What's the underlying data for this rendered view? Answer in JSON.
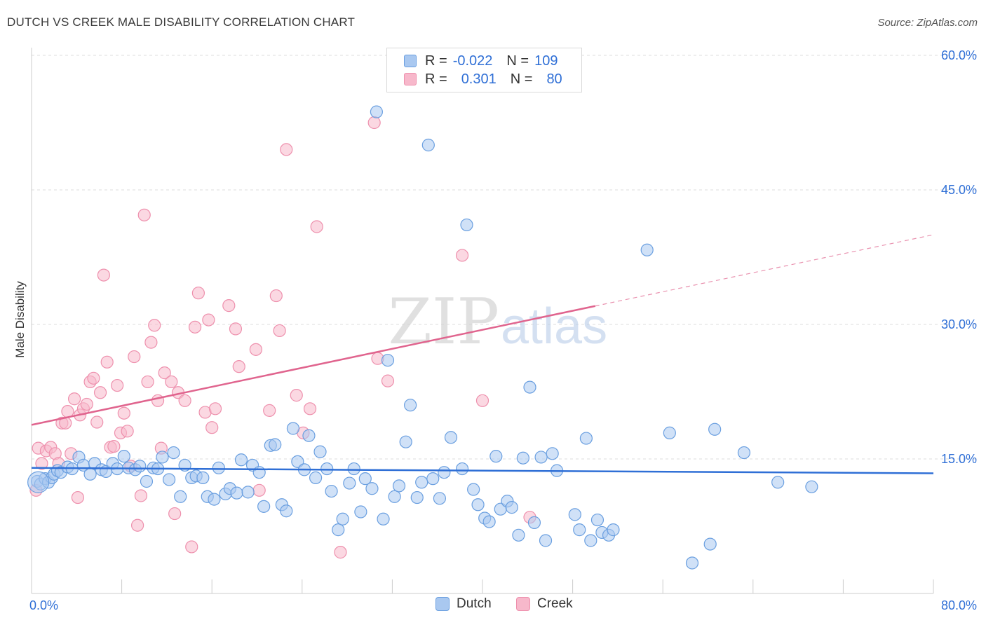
{
  "title": "DUTCH VS CREEK MALE DISABILITY CORRELATION CHART",
  "source": "Source: ZipAtlas.com",
  "watermark": {
    "zip": "ZIP",
    "atlas": "atlas"
  },
  "legend": {
    "rows": [
      {
        "r_label": "R =",
        "r_value": "-0.022",
        "n_label": "N =",
        "n_value": "109"
      },
      {
        "r_label": "R =",
        "r_value": "0.301",
        "n_label": "N =",
        "n_value": "80"
      }
    ]
  },
  "bottom_legend": {
    "dutch": "Dutch",
    "creek": "Creek"
  },
  "colors": {
    "dutch_fill": "#a9c8f0",
    "dutch_stroke": "#6a9fe0",
    "dutch_line": "#2f6fd6",
    "creek_fill": "#f7b8cb",
    "creek_stroke": "#ee90ad",
    "creek_line": "#e0648e",
    "axis_text": "#2f6fd6",
    "grid": "#dddddd"
  },
  "chart_data": {
    "type": "scatter",
    "title": "DUTCH VS CREEK MALE DISABILITY CORRELATION CHART",
    "xlabel": "",
    "ylabel": "Male Disability",
    "xlim": [
      0,
      80
    ],
    "ylim": [
      0,
      60
    ],
    "x_tick_labels": [
      "0.0%",
      "80.0%"
    ],
    "y_ticks": [
      15,
      30,
      45,
      60
    ],
    "y_tick_labels": [
      "15.0%",
      "30.0%",
      "45.0%",
      "60.0%"
    ],
    "grid": true,
    "series": [
      {
        "name": "Dutch",
        "r": -0.022,
        "n": 109,
        "trend": {
          "x0": 0,
          "y0": 14.0,
          "x1": 80,
          "y1": 13.4,
          "solid_until": 80
        },
        "points": [
          [
            0.5,
            12.5
          ],
          [
            0.8,
            12.2
          ],
          [
            1.2,
            12.8
          ],
          [
            1.5,
            12.4
          ],
          [
            1.8,
            12.9
          ],
          [
            2.0,
            13.3
          ],
          [
            2.3,
            13.7
          ],
          [
            2.6,
            13.5
          ],
          [
            3.2,
            14.1
          ],
          [
            3.6,
            13.9
          ],
          [
            4.2,
            15.2
          ],
          [
            4.6,
            14.3
          ],
          [
            5.2,
            13.3
          ],
          [
            5.6,
            14.5
          ],
          [
            6.2,
            13.8
          ],
          [
            6.6,
            13.6
          ],
          [
            7.2,
            14.5
          ],
          [
            7.6,
            13.9
          ],
          [
            8.2,
            15.3
          ],
          [
            8.6,
            14.0
          ],
          [
            9.2,
            13.8
          ],
          [
            9.6,
            14.2
          ],
          [
            10.2,
            12.5
          ],
          [
            10.8,
            14.0
          ],
          [
            11.2,
            13.9
          ],
          [
            11.6,
            15.2
          ],
          [
            12.2,
            12.7
          ],
          [
            12.6,
            15.7
          ],
          [
            13.2,
            10.8
          ],
          [
            13.6,
            14.3
          ],
          [
            14.2,
            12.9
          ],
          [
            14.6,
            13.1
          ],
          [
            15.2,
            12.9
          ],
          [
            15.6,
            10.8
          ],
          [
            16.2,
            10.5
          ],
          [
            16.6,
            14.0
          ],
          [
            17.2,
            11.1
          ],
          [
            17.6,
            11.7
          ],
          [
            18.2,
            11.2
          ],
          [
            18.6,
            14.9
          ],
          [
            19.2,
            11.3
          ],
          [
            19.6,
            14.3
          ],
          [
            20.2,
            13.5
          ],
          [
            20.6,
            9.7
          ],
          [
            21.2,
            16.5
          ],
          [
            21.6,
            16.6
          ],
          [
            22.2,
            9.9
          ],
          [
            22.6,
            9.2
          ],
          [
            23.2,
            18.4
          ],
          [
            23.6,
            14.7
          ],
          [
            24.2,
            13.8
          ],
          [
            24.6,
            17.6
          ],
          [
            25.2,
            12.9
          ],
          [
            25.6,
            15.8
          ],
          [
            26.2,
            13.9
          ],
          [
            26.6,
            11.4
          ],
          [
            27.2,
            7.1
          ],
          [
            27.6,
            8.3
          ],
          [
            28.2,
            12.3
          ],
          [
            28.6,
            13.9
          ],
          [
            29.2,
            9.1
          ],
          [
            29.6,
            12.8
          ],
          [
            30.2,
            11.7
          ],
          [
            30.6,
            53.7
          ],
          [
            31.2,
            8.3
          ],
          [
            31.6,
            26.0
          ],
          [
            32.2,
            10.8
          ],
          [
            32.6,
            12.0
          ],
          [
            33.2,
            16.9
          ],
          [
            33.6,
            21.0
          ],
          [
            34.2,
            10.7
          ],
          [
            34.6,
            12.4
          ],
          [
            35.2,
            50.0
          ],
          [
            35.6,
            12.8
          ],
          [
            36.2,
            10.6
          ],
          [
            36.6,
            13.5
          ],
          [
            37.2,
            17.4
          ],
          [
            38.2,
            13.9
          ],
          [
            38.6,
            41.1
          ],
          [
            39.2,
            11.6
          ],
          [
            39.6,
            9.9
          ],
          [
            40.2,
            8.4
          ],
          [
            40.6,
            8.0
          ],
          [
            41.2,
            15.3
          ],
          [
            41.6,
            9.4
          ],
          [
            42.2,
            10.3
          ],
          [
            42.6,
            9.6
          ],
          [
            43.2,
            6.5
          ],
          [
            43.6,
            15.1
          ],
          [
            44.2,
            23.0
          ],
          [
            44.6,
            7.9
          ],
          [
            45.2,
            15.2
          ],
          [
            45.6,
            5.9
          ],
          [
            46.2,
            15.6
          ],
          [
            46.6,
            13.7
          ],
          [
            48.2,
            8.8
          ],
          [
            48.6,
            7.1
          ],
          [
            49.2,
            17.3
          ],
          [
            49.6,
            5.9
          ],
          [
            50.2,
            8.2
          ],
          [
            50.6,
            6.8
          ],
          [
            51.2,
            6.5
          ],
          [
            51.6,
            7.1
          ],
          [
            54.6,
            38.3
          ],
          [
            56.6,
            17.9
          ],
          [
            58.6,
            3.4
          ],
          [
            60.2,
            5.5
          ],
          [
            60.6,
            18.3
          ],
          [
            63.2,
            15.7
          ],
          [
            66.2,
            12.4
          ],
          [
            69.2,
            11.9
          ]
        ]
      },
      {
        "name": "Creek",
        "r": 0.301,
        "n": 80,
        "trend": {
          "x0": 0,
          "y0": 18.8,
          "x1": 80,
          "y1": 40.0,
          "solid_until": 50
        },
        "points": [
          [
            0.4,
            11.5
          ],
          [
            0.6,
            16.2
          ],
          [
            0.9,
            14.5
          ],
          [
            1.3,
            15.9
          ],
          [
            1.7,
            16.3
          ],
          [
            2.1,
            15.6
          ],
          [
            2.4,
            14.5
          ],
          [
            2.7,
            19.0
          ],
          [
            3.0,
            19.0
          ],
          [
            3.2,
            20.3
          ],
          [
            3.5,
            15.6
          ],
          [
            3.8,
            21.7
          ],
          [
            4.1,
            10.7
          ],
          [
            4.3,
            19.9
          ],
          [
            4.6,
            20.6
          ],
          [
            4.9,
            21.1
          ],
          [
            5.2,
            23.6
          ],
          [
            5.5,
            24.0
          ],
          [
            5.8,
            19.1
          ],
          [
            6.1,
            22.4
          ],
          [
            6.4,
            35.5
          ],
          [
            6.7,
            25.8
          ],
          [
            7.0,
            16.3
          ],
          [
            7.3,
            16.4
          ],
          [
            7.6,
            23.2
          ],
          [
            7.9,
            17.9
          ],
          [
            8.2,
            20.1
          ],
          [
            8.5,
            18.1
          ],
          [
            8.8,
            14.2
          ],
          [
            9.1,
            26.4
          ],
          [
            9.4,
            7.6
          ],
          [
            9.7,
            10.9
          ],
          [
            10.0,
            42.2
          ],
          [
            10.3,
            23.6
          ],
          [
            10.6,
            28.0
          ],
          [
            10.9,
            29.9
          ],
          [
            11.2,
            21.5
          ],
          [
            11.5,
            16.2
          ],
          [
            11.8,
            24.6
          ],
          [
            12.4,
            23.6
          ],
          [
            12.7,
            8.9
          ],
          [
            13.0,
            22.4
          ],
          [
            13.6,
            21.5
          ],
          [
            14.2,
            5.2
          ],
          [
            14.5,
            29.7
          ],
          [
            14.8,
            33.5
          ],
          [
            15.4,
            20.2
          ],
          [
            15.7,
            30.5
          ],
          [
            16.0,
            18.5
          ],
          [
            16.3,
            20.6
          ],
          [
            17.5,
            32.1
          ],
          [
            18.1,
            29.5
          ],
          [
            18.4,
            25.3
          ],
          [
            19.9,
            27.2
          ],
          [
            20.2,
            11.5
          ],
          [
            21.1,
            20.4
          ],
          [
            21.7,
            33.2
          ],
          [
            22.0,
            29.3
          ],
          [
            22.6,
            49.5
          ],
          [
            23.5,
            22.1
          ],
          [
            24.1,
            17.9
          ],
          [
            24.7,
            20.6
          ],
          [
            25.3,
            40.9
          ],
          [
            27.4,
            4.6
          ],
          [
            30.4,
            52.5
          ],
          [
            30.7,
            26.2
          ],
          [
            31.6,
            23.7
          ],
          [
            38.2,
            37.7
          ],
          [
            40.0,
            21.5
          ],
          [
            44.2,
            8.5
          ]
        ]
      }
    ]
  }
}
